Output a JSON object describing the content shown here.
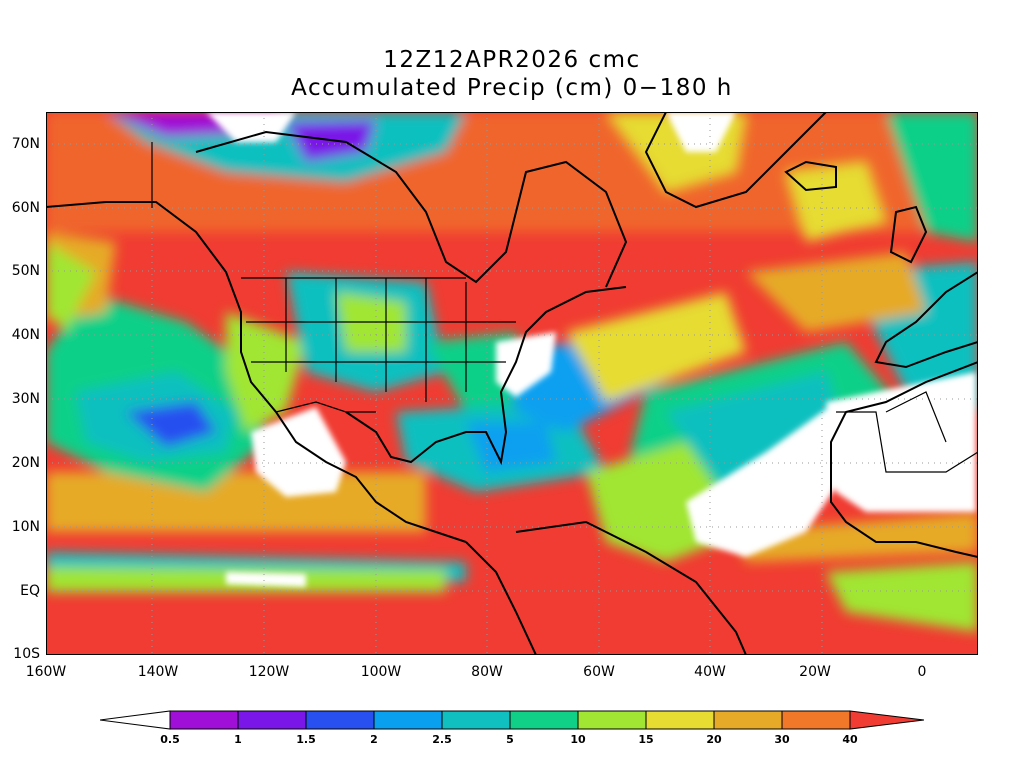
{
  "title_line1": "12Z12APR2026 cmc",
  "title_line2": "Accumulated Precip (cm) 0−180 h",
  "lat_labels": [
    "70N",
    "60N",
    "50N",
    "40N",
    "30N",
    "20N",
    "10N",
    "EQ",
    "10S"
  ],
  "lon_labels": [
    "160W",
    "140W",
    "120W",
    "100W",
    "80W",
    "60W",
    "40W",
    "20W",
    "0"
  ],
  "colorbar": {
    "labels": [
      "0.5",
      "1",
      "1.5",
      "2",
      "2.5",
      "5",
      "10",
      "15",
      "20",
      "30",
      "40"
    ],
    "colors": [
      "#ffffff",
      "#9f0fd8",
      "#7a17e8",
      "#2850f0",
      "#0aa0f0",
      "#10c0c0",
      "#10d088",
      "#a0e632",
      "#e6dc32",
      "#e6aa28",
      "#f07828",
      "#f03c32"
    ]
  }
}
